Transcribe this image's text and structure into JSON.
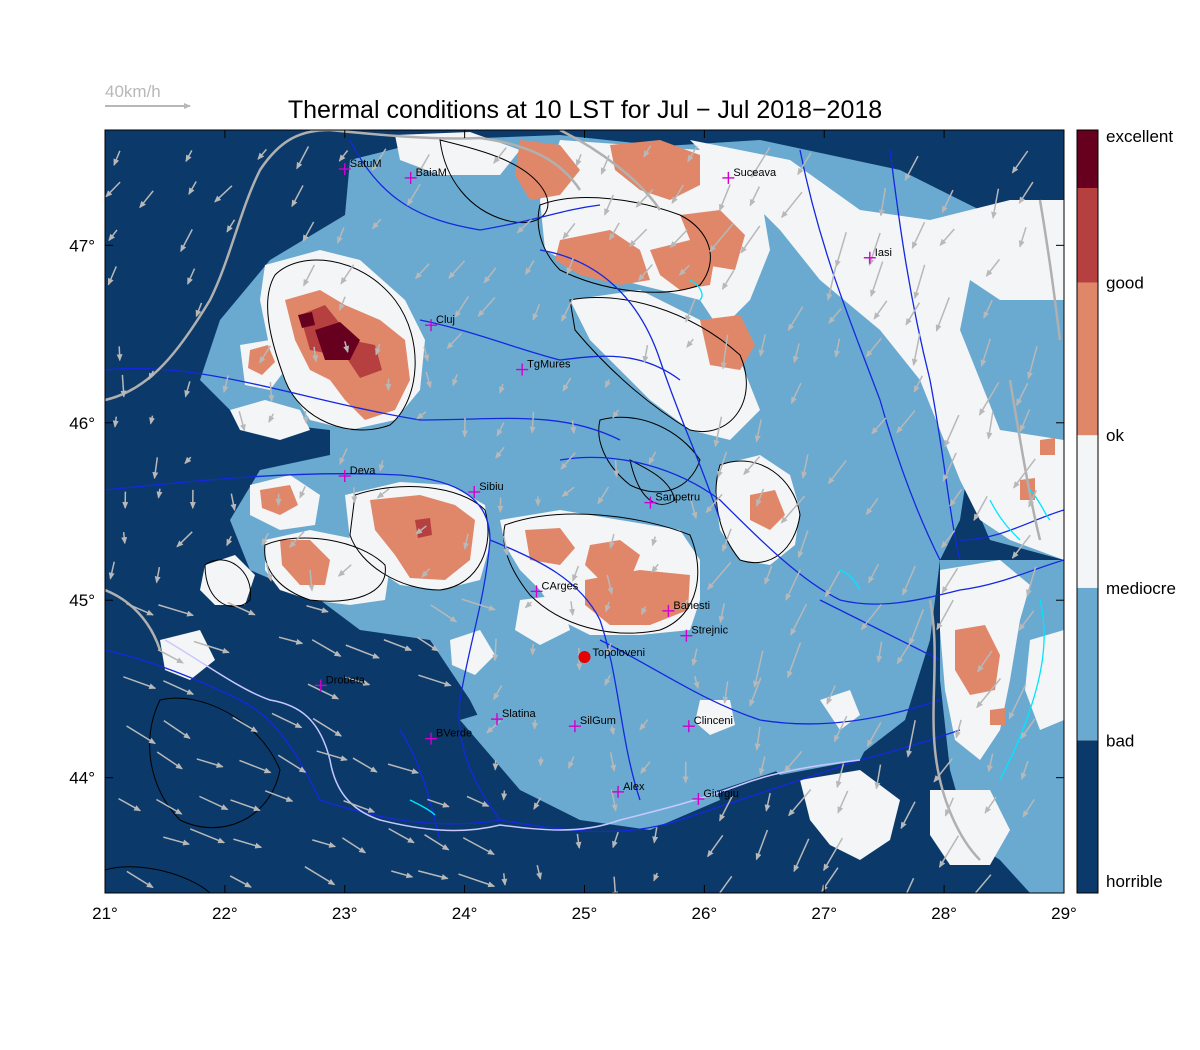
{
  "title": "Thermal conditions at 10 LST for Jul − Jul  2018−2018",
  "wind_legend": {
    "label": "40km/h"
  },
  "axes": {
    "lon_range": [
      21,
      29
    ],
    "lat_range": [
      43.35,
      47.65
    ],
    "x_ticks": [
      {
        "value": 21,
        "label": "21°"
      },
      {
        "value": 22,
        "label": "22°"
      },
      {
        "value": 23,
        "label": "23°"
      },
      {
        "value": 24,
        "label": "24°"
      },
      {
        "value": 25,
        "label": "25°"
      },
      {
        "value": 26,
        "label": "26°"
      },
      {
        "value": 27,
        "label": "27°"
      },
      {
        "value": 28,
        "label": "28°"
      },
      {
        "value": 29,
        "label": "29°"
      }
    ],
    "y_ticks": [
      {
        "value": 44,
        "label": "44°"
      },
      {
        "value": 45,
        "label": "45°"
      },
      {
        "value": 46,
        "label": "46°"
      },
      {
        "value": 47,
        "label": "47°"
      }
    ]
  },
  "colorbar": {
    "classes": [
      {
        "label": "horrible",
        "color": "#0b3a6a"
      },
      {
        "label": "bad",
        "color": "#6aaad0"
      },
      {
        "label": "mediocre",
        "color": "#f4f5f7"
      },
      {
        "label": "ok",
        "color": "#e0876a"
      },
      {
        "label": "good",
        "color": "#b64040"
      },
      {
        "label": "excellent",
        "color": "#67001f"
      }
    ],
    "labels_shown": [
      "excellent",
      "good",
      "ok",
      "mediocre",
      "bad",
      "horrible"
    ]
  },
  "colors": {
    "horrible": "#0b3a6a",
    "bad": "#6aaad0",
    "mediocre": "#f4f5f7",
    "ok": "#e0876a",
    "good": "#b64040",
    "excellent": "#67001f",
    "rivers": "#1428e0",
    "border": "#b0b0b0",
    "lakes": "#00e5ff",
    "wind": "#b8b8b8",
    "city_marker": "#d000d0",
    "highlight": "#e60000"
  },
  "cities": [
    {
      "name": "SatuM",
      "lon": 23.0,
      "lat": 47.43
    },
    {
      "name": "BaiaM",
      "lon": 23.55,
      "lat": 47.38
    },
    {
      "name": "Suceava",
      "lon": 26.2,
      "lat": 47.38
    },
    {
      "name": "Iasi",
      "lon": 27.38,
      "lat": 46.93
    },
    {
      "name": "Cluj",
      "lon": 23.72,
      "lat": 46.55
    },
    {
      "name": "TgMures",
      "lon": 24.48,
      "lat": 46.3
    },
    {
      "name": "Deva",
      "lon": 23.0,
      "lat": 45.7
    },
    {
      "name": "Sibiu",
      "lon": 24.08,
      "lat": 45.61
    },
    {
      "name": "Sanpetru",
      "lon": 25.55,
      "lat": 45.55
    },
    {
      "name": "CArges",
      "lon": 24.6,
      "lat": 45.05
    },
    {
      "name": "Banesti",
      "lon": 25.7,
      "lat": 44.94
    },
    {
      "name": "Strejnic",
      "lon": 25.85,
      "lat": 44.8
    },
    {
      "name": "Drobeta",
      "lon": 22.8,
      "lat": 44.52
    },
    {
      "name": "Slatina",
      "lon": 24.27,
      "lat": 44.33
    },
    {
      "name": "SilGum",
      "lon": 24.92,
      "lat": 44.29
    },
    {
      "name": "Clinceni",
      "lon": 25.87,
      "lat": 44.29
    },
    {
      "name": "BVerde",
      "lon": 23.72,
      "lat": 44.22
    },
    {
      "name": "Alex",
      "lon": 25.28,
      "lat": 43.92
    },
    {
      "name": "Giurgiu",
      "lon": 25.95,
      "lat": 43.88
    }
  ],
  "highlight_site": {
    "name": "Topoloveni",
    "lon": 25.0,
    "lat": 44.68
  }
}
